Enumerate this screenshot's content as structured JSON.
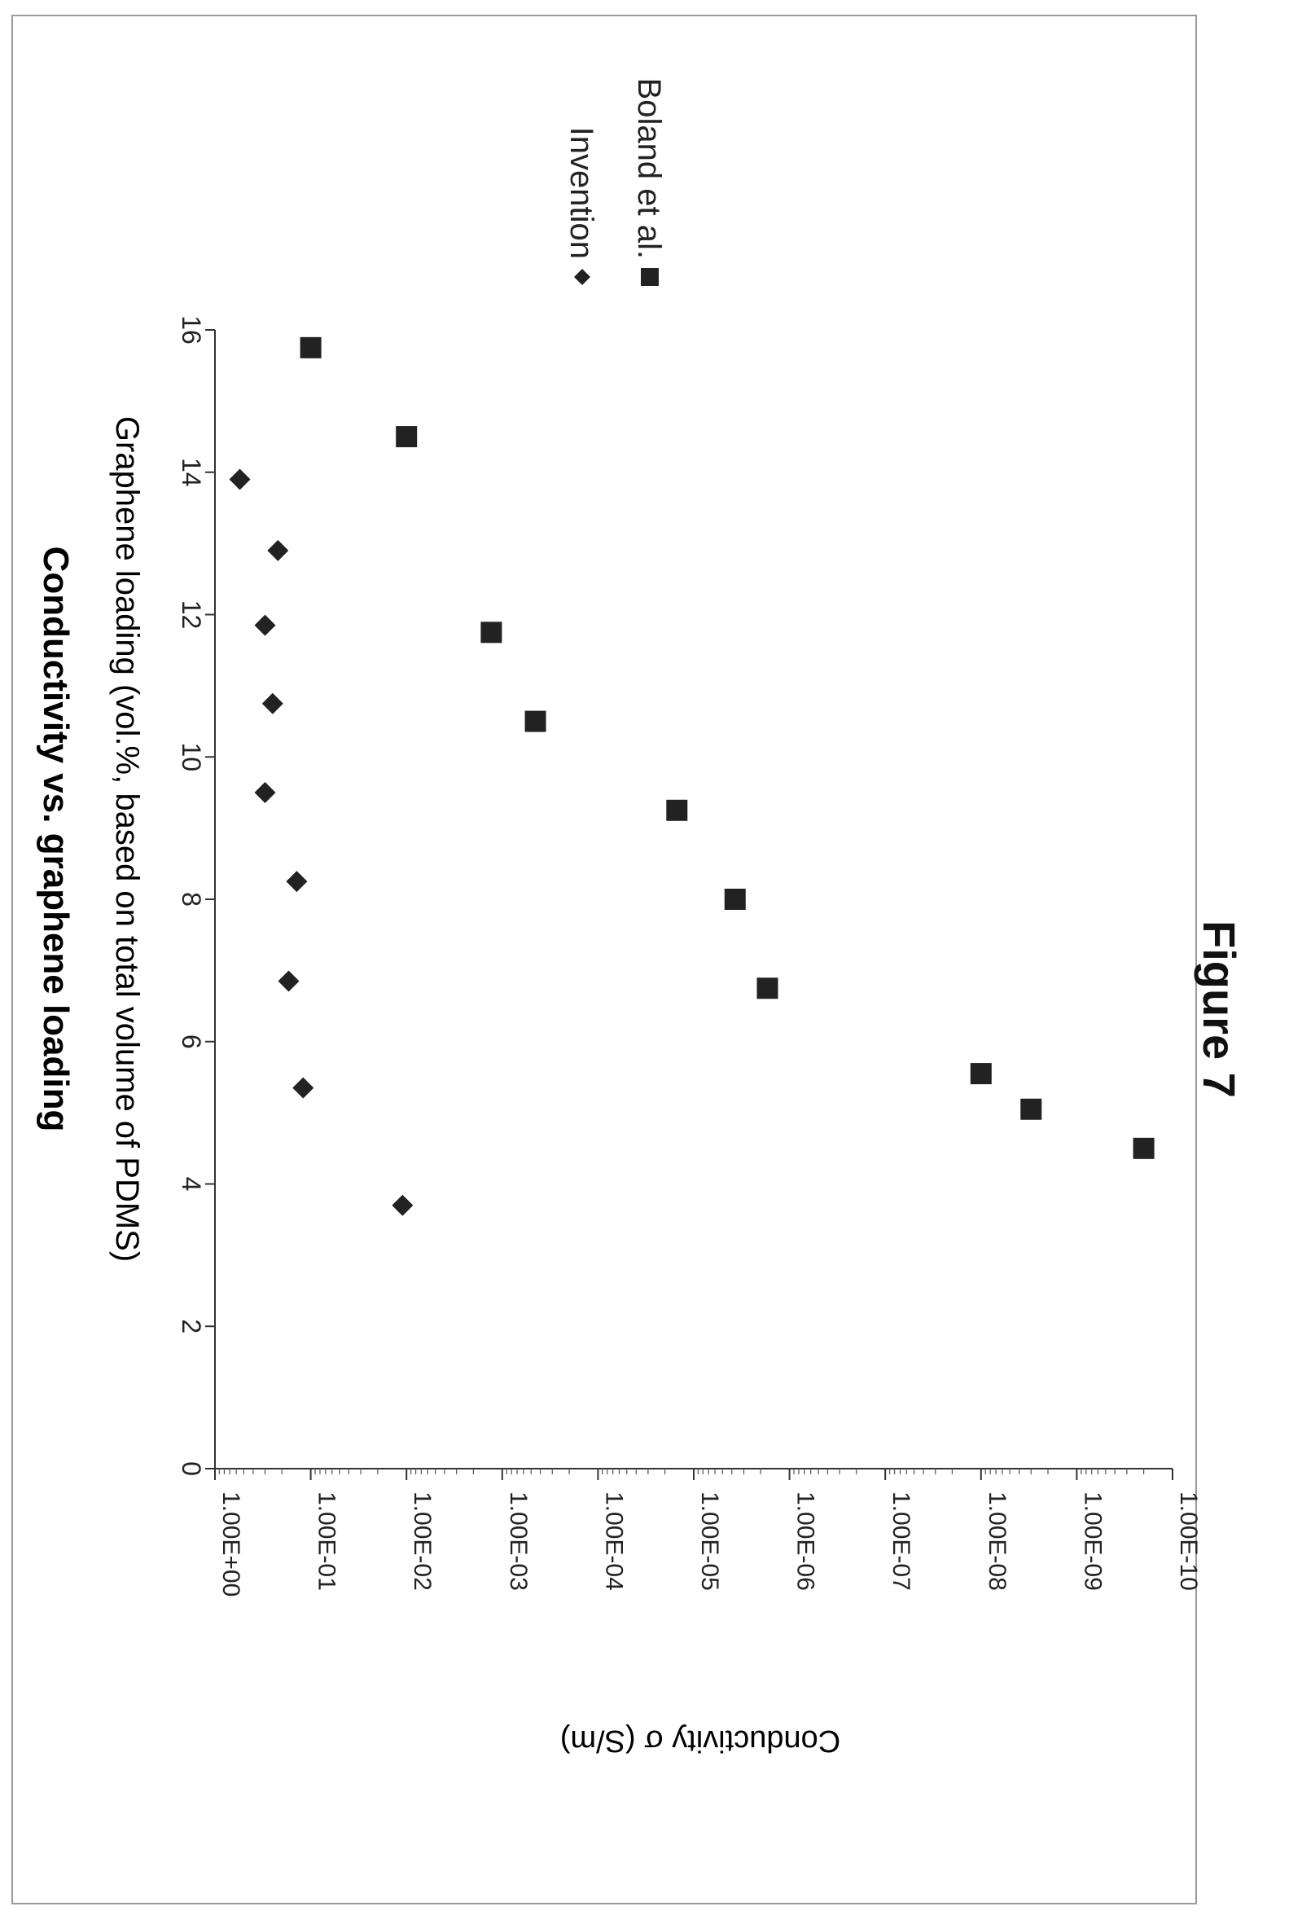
{
  "figure_label": "Figure 7",
  "chart_data": {
    "type": "scatter",
    "title": "Conductivity vs. graphene loading",
    "xlabel": "Graphene loading (vol.%, based on total volume of PDMS)",
    "ylabel": "Conductivity σ (S/m)",
    "xlim": [
      0,
      16
    ],
    "x_ticks": [
      0,
      2,
      4,
      6,
      8,
      10,
      12,
      14,
      16
    ],
    "y_scale": "log",
    "ylim": [
      1e-10,
      1
    ],
    "y_ticks": [
      1,
      0.1,
      0.01,
      0.001,
      0.0001,
      1e-05,
      1e-06,
      1e-07,
      1e-08,
      1e-09,
      1e-10
    ],
    "y_tick_labels": [
      "1.00E+00",
      "1.00E-01",
      "1.00E-02",
      "1.00E-03",
      "1.00E-04",
      "1.00E-05",
      "1.00E-06",
      "1.00E-07",
      "1.00E-08",
      "1.00E-09",
      "1.00E-10"
    ],
    "legend_position": "top-right",
    "series": [
      {
        "name": "Invention",
        "marker": "diamond",
        "color": "#222222",
        "points": [
          {
            "x": 3.7,
            "y": 0.011
          },
          {
            "x": 5.35,
            "y": 0.12
          },
          {
            "x": 6.85,
            "y": 0.17
          },
          {
            "x": 8.25,
            "y": 0.14
          },
          {
            "x": 9.5,
            "y": 0.3
          },
          {
            "x": 10.75,
            "y": 0.25
          },
          {
            "x": 11.85,
            "y": 0.3
          },
          {
            "x": 12.9,
            "y": 0.22
          },
          {
            "x": 13.9,
            "y": 0.55
          }
        ]
      },
      {
        "name": "Boland et al.",
        "marker": "square",
        "color": "#222222",
        "points": [
          {
            "x": 4.5,
            "y": 2e-10
          },
          {
            "x": 5.05,
            "y": 3e-09
          },
          {
            "x": 5.55,
            "y": 1e-08
          },
          {
            "x": 6.75,
            "y": 1.7e-06
          },
          {
            "x": 8.0,
            "y": 3.7e-06
          },
          {
            "x": 9.25,
            "y": 1.5e-05
          },
          {
            "x": 10.5,
            "y": 0.00045
          },
          {
            "x": 11.75,
            "y": 0.0013
          },
          {
            "x": 14.5,
            "y": 0.01
          },
          {
            "x": 15.75,
            "y": 0.1
          }
        ]
      }
    ]
  }
}
